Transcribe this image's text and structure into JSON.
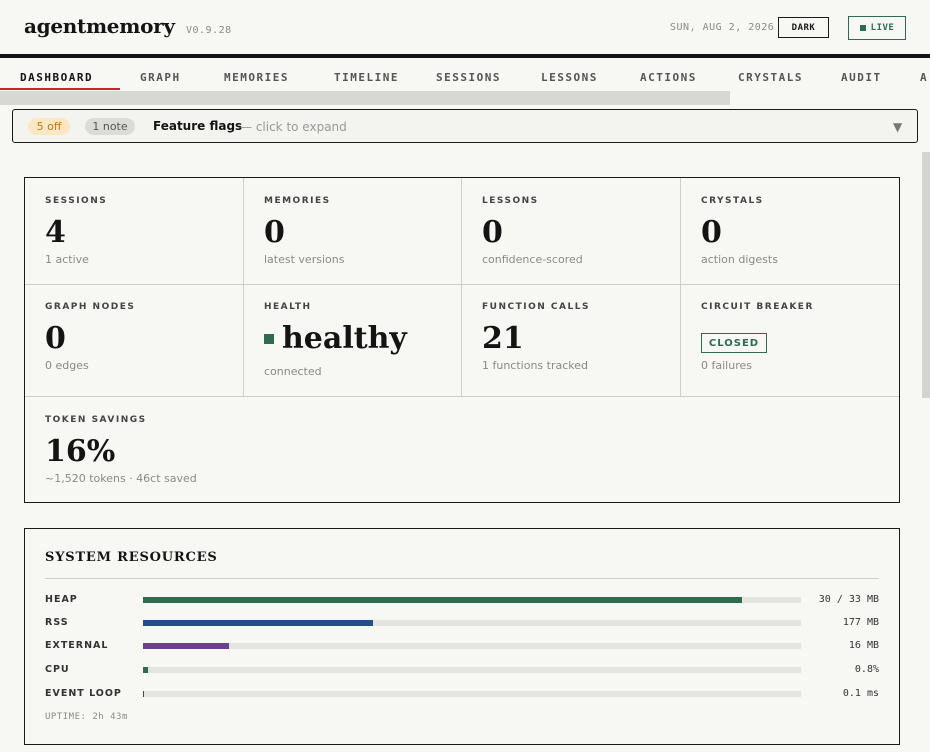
{
  "header": {
    "brand": "agentmemory",
    "version": "V0.9.28",
    "date": "SUN, AUG 2, 2026",
    "dark_label": "DARK",
    "live_label": "LIVE"
  },
  "tabs": [
    {
      "label": "DASHBOARD",
      "active": true
    },
    {
      "label": "GRAPH"
    },
    {
      "label": "MEMORIES"
    },
    {
      "label": "TIMELINE"
    },
    {
      "label": "SESSIONS"
    },
    {
      "label": "LESSONS"
    },
    {
      "label": "ACTIONS"
    },
    {
      "label": "CRYSTALS"
    },
    {
      "label": "AUDIT"
    },
    {
      "label": "A"
    }
  ],
  "feature_flags": {
    "off_count": "5 off",
    "note_count": "1 note",
    "title": "Feature flags",
    "hint": "— click to expand"
  },
  "stats": {
    "sessions": {
      "label": "SESSIONS",
      "value": "4",
      "sub": "1 active"
    },
    "memories": {
      "label": "MEMORIES",
      "value": "0",
      "sub": "latest versions"
    },
    "lessons": {
      "label": "LESSONS",
      "value": "0",
      "sub": "confidence-scored"
    },
    "crystals": {
      "label": "CRYSTALS",
      "value": "0",
      "sub": "action digests"
    },
    "graph_nodes": {
      "label": "GRAPH NODES",
      "value": "0",
      "sub": "0 edges"
    },
    "health": {
      "label": "HEALTH",
      "value": "healthy",
      "sub": "connected",
      "color": "#2e6b4f"
    },
    "function_calls": {
      "label": "FUNCTION CALLS",
      "value": "21",
      "sub": "1 functions tracked"
    },
    "circuit_breaker": {
      "label": "CIRCUIT BREAKER",
      "badge": "CLOSED",
      "sub": "0 failures"
    },
    "token_savings": {
      "label": "TOKEN SAVINGS",
      "value": "16%",
      "sub": "~1,520 tokens · 46ct saved"
    }
  },
  "system_resources": {
    "title": "SYSTEM RESOURCES",
    "rows": [
      {
        "label": "HEAP",
        "value": "30 / 33 MB",
        "fraction": 0.91,
        "color": "#2e6b4f"
      },
      {
        "label": "RSS",
        "value": "177 MB",
        "fraction": 0.35,
        "color": "#234f86"
      },
      {
        "label": "EXTERNAL",
        "value": "16 MB",
        "fraction": 0.13,
        "color": "#6b3f96"
      },
      {
        "label": "CPU",
        "value": "0.8%",
        "fraction": 0.008,
        "color": "#2e6b4f"
      },
      {
        "label": "EVENT LOOP",
        "value": "0.1 ms",
        "fraction": 0.002,
        "color": "#444444"
      }
    ],
    "uptime": "UPTIME: 2h 43m"
  }
}
